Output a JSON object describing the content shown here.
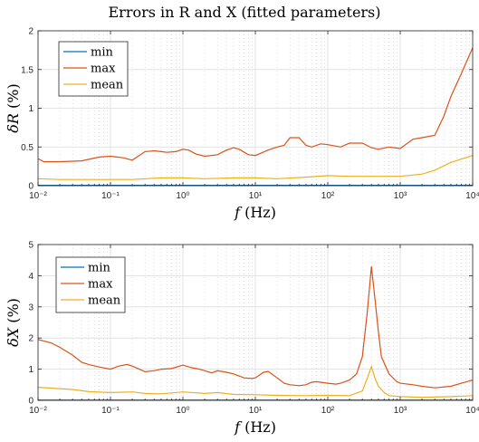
{
  "figure_title": "Errors in R and X (fitted parameters)",
  "chart_data": [
    {
      "type": "line",
      "xscale": "log",
      "xlim": [
        0.01,
        10000
      ],
      "ylim": [
        0,
        2
      ],
      "xlabel": "f (Hz)",
      "ylabel": "δR (%)",
      "xtick_labels": [
        "10⁻²",
        "10⁻¹",
        "10⁰",
        "10¹",
        "10²",
        "10³",
        "10⁴"
      ],
      "xticks": [
        0.01,
        0.1,
        1,
        10,
        100,
        1000,
        10000
      ],
      "yticks": [
        0,
        0.5,
        1,
        1.5,
        2
      ],
      "ytick_labels": [
        "0",
        "0.5",
        "1",
        "1.5",
        "2"
      ],
      "grid": true,
      "legend_position": "top-left",
      "series": [
        {
          "name": "min",
          "color": "#0072BD",
          "x": [
            0.01,
            0.1,
            1,
            10,
            100,
            1000,
            10000
          ],
          "y": [
            0.005,
            0.005,
            0.005,
            0.005,
            0.005,
            0.005,
            0.005
          ]
        },
        {
          "name": "max",
          "color": "#D95319",
          "x": [
            0.01,
            0.012,
            0.02,
            0.04,
            0.07,
            0.1,
            0.15,
            0.2,
            0.3,
            0.4,
            0.5,
            0.6,
            0.8,
            1,
            1.2,
            1.5,
            2,
            3,
            4,
            5,
            6,
            8,
            10,
            15,
            20,
            25,
            30,
            40,
            50,
            60,
            80,
            100,
            150,
            200,
            300,
            400,
            500,
            700,
            1000,
            1500,
            2000,
            3000,
            4000,
            5000,
            7000,
            10000
          ],
          "y": [
            0.35,
            0.31,
            0.31,
            0.32,
            0.37,
            0.38,
            0.36,
            0.33,
            0.44,
            0.45,
            0.44,
            0.43,
            0.44,
            0.47,
            0.46,
            0.41,
            0.38,
            0.4,
            0.46,
            0.49,
            0.47,
            0.4,
            0.39,
            0.46,
            0.5,
            0.52,
            0.62,
            0.62,
            0.52,
            0.5,
            0.54,
            0.53,
            0.5,
            0.55,
            0.55,
            0.49,
            0.47,
            0.5,
            0.48,
            0.6,
            0.62,
            0.65,
            0.9,
            1.15,
            1.45,
            1.78
          ]
        },
        {
          "name": "mean",
          "color": "#EDB120",
          "x": [
            0.01,
            0.02,
            0.05,
            0.1,
            0.2,
            0.5,
            1,
            2,
            5,
            10,
            20,
            50,
            100,
            200,
            500,
            1000,
            2000,
            3000,
            5000,
            10000
          ],
          "y": [
            0.09,
            0.08,
            0.08,
            0.08,
            0.08,
            0.1,
            0.1,
            0.09,
            0.1,
            0.1,
            0.09,
            0.11,
            0.13,
            0.12,
            0.12,
            0.12,
            0.15,
            0.2,
            0.3,
            0.39
          ]
        }
      ]
    },
    {
      "type": "line",
      "xscale": "log",
      "xlim": [
        0.01,
        10000
      ],
      "ylim": [
        0,
        5
      ],
      "xlabel": "f (Hz)",
      "ylabel": "δX (%)",
      "xtick_labels": [
        "10⁻²",
        "10⁻¹",
        "10⁰",
        "10¹",
        "10²",
        "10³",
        "10⁴"
      ],
      "xticks": [
        0.01,
        0.1,
        1,
        10,
        100,
        1000,
        10000
      ],
      "yticks": [
        0,
        1,
        2,
        3,
        4,
        5
      ],
      "ytick_labels": [
        "0",
        "1",
        "2",
        "3",
        "4",
        "5"
      ],
      "grid": true,
      "legend_position": "top-left",
      "series": [
        {
          "name": "min",
          "color": "#0072BD",
          "x": [
            0.01,
            0.1,
            1,
            10,
            100,
            1000,
            10000
          ],
          "y": [
            0.01,
            0.01,
            0.01,
            0.01,
            0.01,
            0.01,
            0.01
          ]
        },
        {
          "name": "max",
          "color": "#D95319",
          "x": [
            0.01,
            0.015,
            0.02,
            0.03,
            0.04,
            0.05,
            0.07,
            0.1,
            0.13,
            0.17,
            0.2,
            0.25,
            0.3,
            0.4,
            0.5,
            0.7,
            0.8,
            1,
            1.3,
            1.7,
            2,
            2.5,
            3,
            4,
            5,
            7,
            9,
            10,
            13,
            15,
            20,
            25,
            30,
            40,
            50,
            60,
            70,
            80,
            100,
            130,
            150,
            200,
            250,
            300,
            350,
            400,
            450,
            500,
            550,
            700,
            900,
            1000,
            1500,
            2000,
            3000,
            5000,
            7000,
            10000
          ],
          "y": [
            1.95,
            1.85,
            1.7,
            1.45,
            1.22,
            1.15,
            1.07,
            1.0,
            1.1,
            1.15,
            1.1,
            1.0,
            0.92,
            0.95,
            1.0,
            1.02,
            1.06,
            1.13,
            1.05,
            1.0,
            0.95,
            0.88,
            0.95,
            0.9,
            0.85,
            0.72,
            0.7,
            0.72,
            0.9,
            0.93,
            0.72,
            0.55,
            0.5,
            0.47,
            0.5,
            0.58,
            0.6,
            0.58,
            0.55,
            0.52,
            0.55,
            0.65,
            0.85,
            1.4,
            2.8,
            4.3,
            3.2,
            2.2,
            1.4,
            0.85,
            0.6,
            0.55,
            0.5,
            0.45,
            0.4,
            0.45,
            0.55,
            0.65
          ]
        },
        {
          "name": "mean",
          "color": "#EDB120",
          "x": [
            0.01,
            0.03,
            0.05,
            0.1,
            0.2,
            0.3,
            0.5,
            1,
            2,
            3,
            5,
            10,
            20,
            50,
            100,
            200,
            300,
            350,
            400,
            450,
            500,
            600,
            700,
            1000,
            2000,
            5000,
            10000
          ],
          "y": [
            0.42,
            0.35,
            0.28,
            0.25,
            0.27,
            0.22,
            0.21,
            0.27,
            0.22,
            0.25,
            0.19,
            0.18,
            0.16,
            0.15,
            0.16,
            0.15,
            0.3,
            0.7,
            1.08,
            0.7,
            0.45,
            0.25,
            0.15,
            0.12,
            0.1,
            0.12,
            0.15
          ]
        }
      ]
    }
  ]
}
